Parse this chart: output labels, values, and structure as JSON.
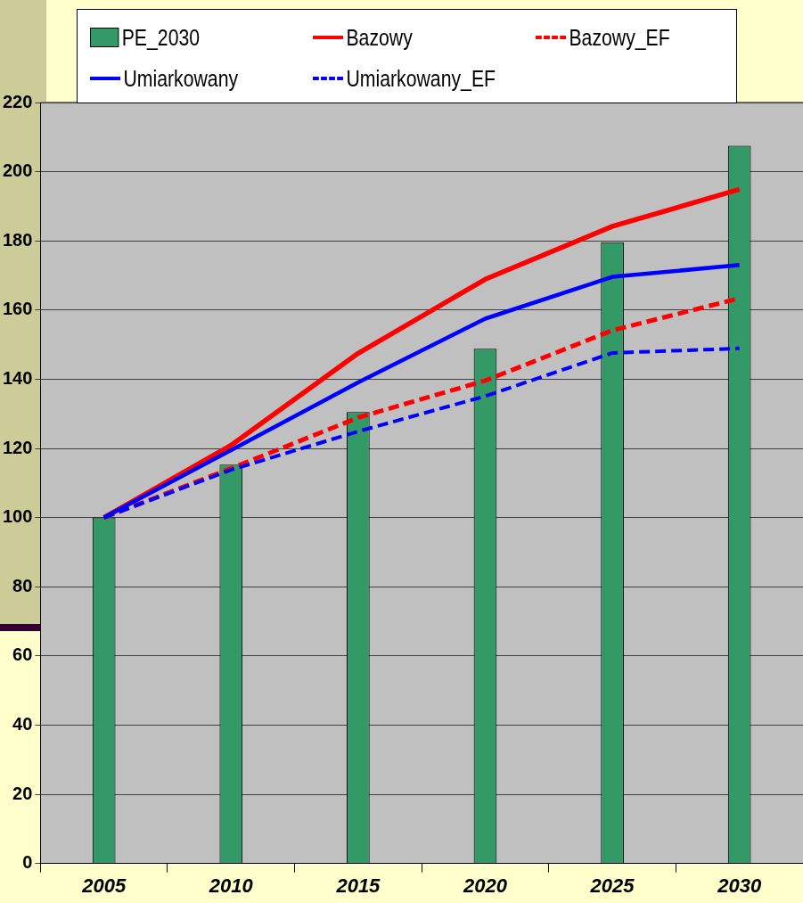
{
  "chart_data": {
    "type": "bar",
    "categories": [
      "2005",
      "2010",
      "2015",
      "2020",
      "2025",
      "2030"
    ],
    "series": [
      {
        "name": "PE_2030",
        "color": "#339966",
        "values": [
          100,
          115.3,
          130.5,
          148.8,
          179.6,
          207.5
        ]
      },
      {
        "name": "Bazowy",
        "type": "line",
        "color": "#ff0000",
        "line_style": "solid",
        "values": [
          100,
          120.9,
          147.5,
          168.9,
          184.2,
          194.9
        ]
      },
      {
        "name": "Bazowy_EF",
        "type": "line",
        "color": "#ff0000",
        "line_style": "dashed",
        "values": [
          100,
          114.2,
          128.9,
          139.6,
          154.1,
          163.4
        ]
      },
      {
        "name": "Umiarkowany",
        "type": "line",
        "color": "#0000ff",
        "line_style": "solid",
        "values": [
          100,
          119.5,
          139.1,
          157.5,
          169.6,
          173
        ]
      },
      {
        "name": "Umiarkowany_EF",
        "type": "line",
        "color": "#0000ff",
        "line_style": "dashed",
        "values": [
          100,
          113.8,
          124.9,
          135.1,
          147.6,
          148.9
        ]
      }
    ],
    "ylim": [
      0,
      220
    ],
    "yticks": [
      0,
      20,
      40,
      60,
      80,
      100,
      120,
      140,
      160,
      180,
      200,
      220
    ],
    "grid": "y",
    "legend": "top",
    "marker": "none"
  }
}
